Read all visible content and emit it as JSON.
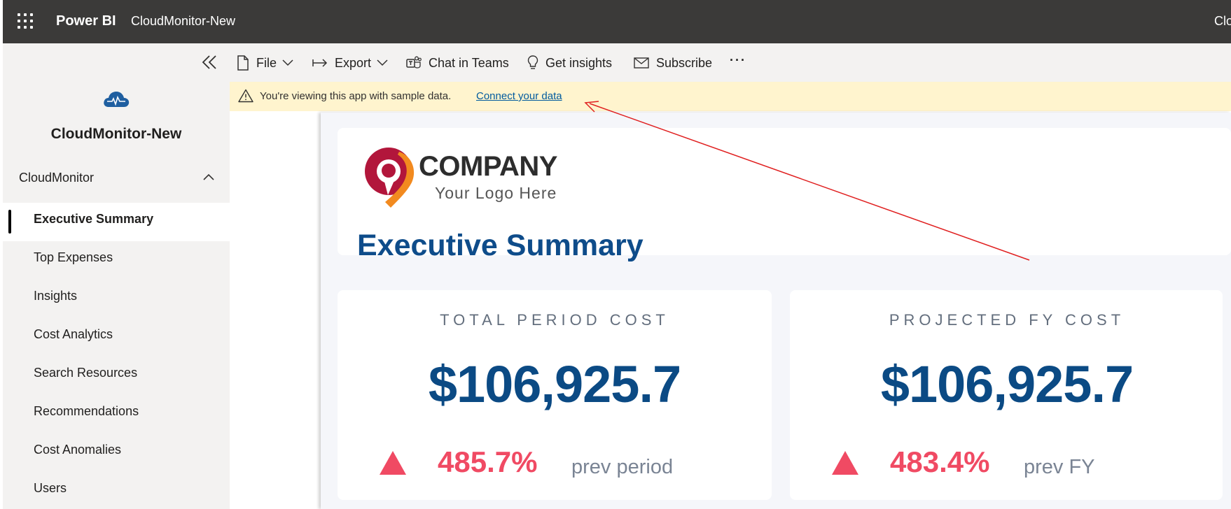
{
  "app": {
    "brand": "Power BI",
    "title": "CloudMonitor-New",
    "top_right_truncated": "Clo"
  },
  "sidebar": {
    "workspace_title": "CloudMonitor-New",
    "section_label": "CloudMonitor",
    "items": [
      {
        "label": "Executive Summary",
        "active": true
      },
      {
        "label": "Top Expenses"
      },
      {
        "label": "Insights"
      },
      {
        "label": "Cost Analytics"
      },
      {
        "label": "Search Resources"
      },
      {
        "label": "Recommendations"
      },
      {
        "label": "Cost Anomalies"
      },
      {
        "label": "Users"
      }
    ]
  },
  "toolbar": {
    "file_label": "File",
    "export_label": "Export",
    "teams_label": "Chat in Teams",
    "insights_label": "Get insights",
    "subscribe_label": "Subscribe",
    "more_label": "···"
  },
  "banner": {
    "message": "You're viewing this app with sample data.",
    "link": "Connect your data"
  },
  "report": {
    "logo_company": "COMPANY",
    "logo_tagline": "Your Logo Here",
    "page_title": "Executive Summary",
    "kpis": [
      {
        "title": "TOTAL PERIOD COST",
        "value": "$106,925.7",
        "change": "485.7%",
        "compare": "prev period"
      },
      {
        "title": "PROJECTED FY COST",
        "value": "$106,925.7",
        "change": "483.4%",
        "compare": "prev FY"
      }
    ]
  },
  "colors": {
    "topbar": "#3b3a39",
    "sidebar": "#f3f2f1",
    "banner": "#fff4ce",
    "kpi_value": "#0b4a84",
    "kpi_change": "#f04a63",
    "annotation_arrow": "#e02020"
  }
}
